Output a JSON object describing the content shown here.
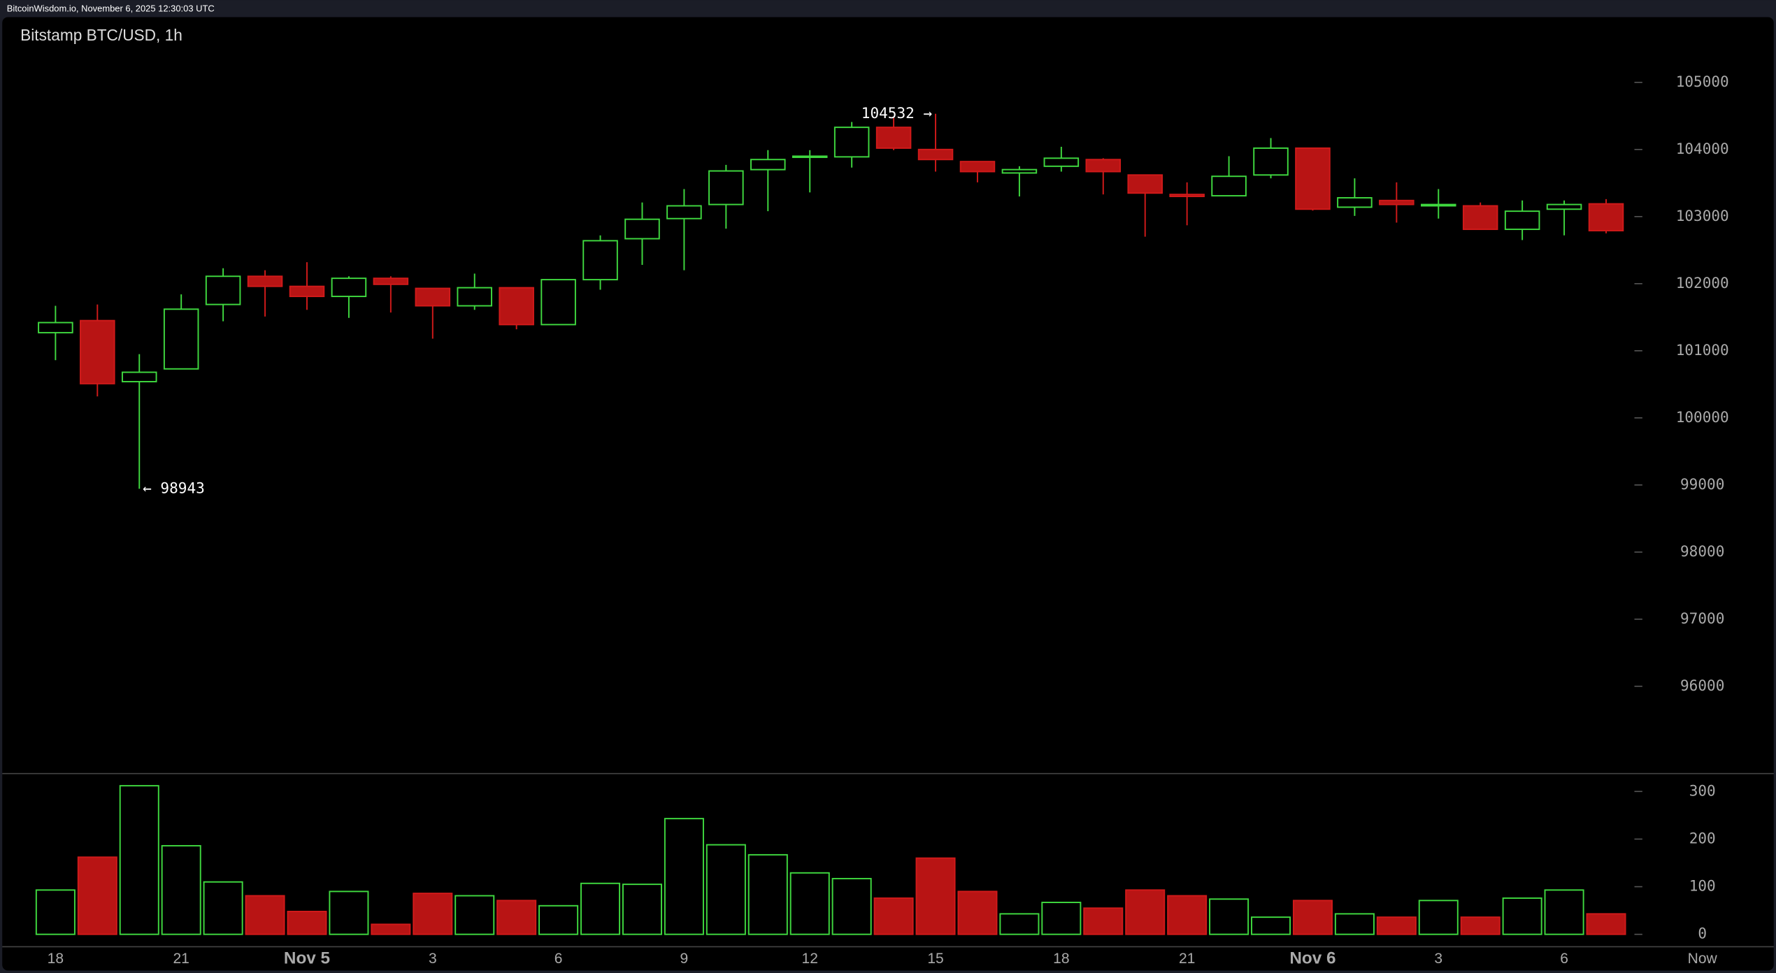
{
  "header": {
    "text": "BitcoinWisdom.io, November 6, 2025 12:30:03 UTC"
  },
  "chart_data": {
    "type": "candlestick",
    "title": "Bitstamp BTC/USD, 1h",
    "categories": [
      "18",
      null,
      null,
      "21",
      null,
      null,
      "Nov 5",
      null,
      null,
      "3",
      null,
      null,
      "6",
      null,
      null,
      "9",
      null,
      null,
      "12",
      null,
      null,
      "15",
      null,
      null,
      "18",
      null,
      null,
      "21",
      null,
      null,
      "Nov 6",
      null,
      null,
      "3",
      null,
      null,
      "6",
      null
    ],
    "x_end_label": "Now",
    "open": [
      101270,
      101450,
      100540,
      100730,
      101690,
      102110,
      101960,
      101810,
      102080,
      101930,
      101670,
      101940,
      101390,
      102060,
      102670,
      102970,
      103180,
      103700,
      103890,
      103890,
      104330,
      104000,
      103820,
      103650,
      103750,
      103850,
      103620,
      103330,
      103310,
      103620,
      104020,
      103140,
      103240,
      103160,
      103160,
      102810,
      103110,
      103190
    ],
    "high": [
      101670,
      101690,
      100950,
      101840,
      102230,
      102200,
      102320,
      102110,
      102110,
      101930,
      102150,
      101940,
      102060,
      102720,
      103210,
      103410,
      103770,
      103990,
      103990,
      104410,
      104490,
      104532,
      103820,
      103750,
      104040,
      103870,
      103620,
      103510,
      103900,
      104170,
      104020,
      103570,
      103510,
      103410,
      103210,
      103240,
      103240,
      103260
    ],
    "low": [
      100860,
      100320,
      98943,
      100730,
      101440,
      101510,
      101610,
      101490,
      101570,
      101180,
      101610,
      101320,
      101390,
      101910,
      102280,
      102200,
      102820,
      103080,
      103360,
      103730,
      103990,
      103670,
      103510,
      103300,
      103670,
      103330,
      102700,
      102870,
      103310,
      103570,
      103090,
      103010,
      102910,
      102970,
      102810,
      102650,
      102720,
      102750
    ],
    "close": [
      101420,
      100510,
      100680,
      101620,
      102110,
      101960,
      101810,
      102080,
      101990,
      101670,
      101940,
      101390,
      102060,
      102640,
      102960,
      103160,
      103680,
      103850,
      103900,
      104330,
      104020,
      103850,
      103670,
      103700,
      103870,
      103670,
      103350,
      103300,
      103600,
      104020,
      103110,
      103280,
      103180,
      103180,
      102810,
      103080,
      103180,
      102790
    ],
    "volume": [
      93,
      162,
      312,
      186,
      110,
      81,
      48,
      90,
      21,
      86,
      81,
      71,
      60,
      107,
      105,
      243,
      188,
      167,
      129,
      117,
      76,
      160,
      90,
      43,
      67,
      55,
      93,
      81,
      74,
      36,
      71,
      43,
      36,
      71,
      36,
      76,
      93,
      43
    ],
    "high_label": "104532 →",
    "low_label": "← 98943",
    "ylim": [
      94750,
      105550
    ],
    "yticks": [
      96000,
      97000,
      98000,
      99000,
      100000,
      101000,
      102000,
      103000,
      104000,
      105000
    ],
    "volume_ylim": [
      0,
      340
    ],
    "volume_yticks": [
      0,
      100,
      200,
      300
    ],
    "up_color": "#3fd83f",
    "down_color": "#b81414",
    "down_edge_color": "#d01a1a"
  }
}
